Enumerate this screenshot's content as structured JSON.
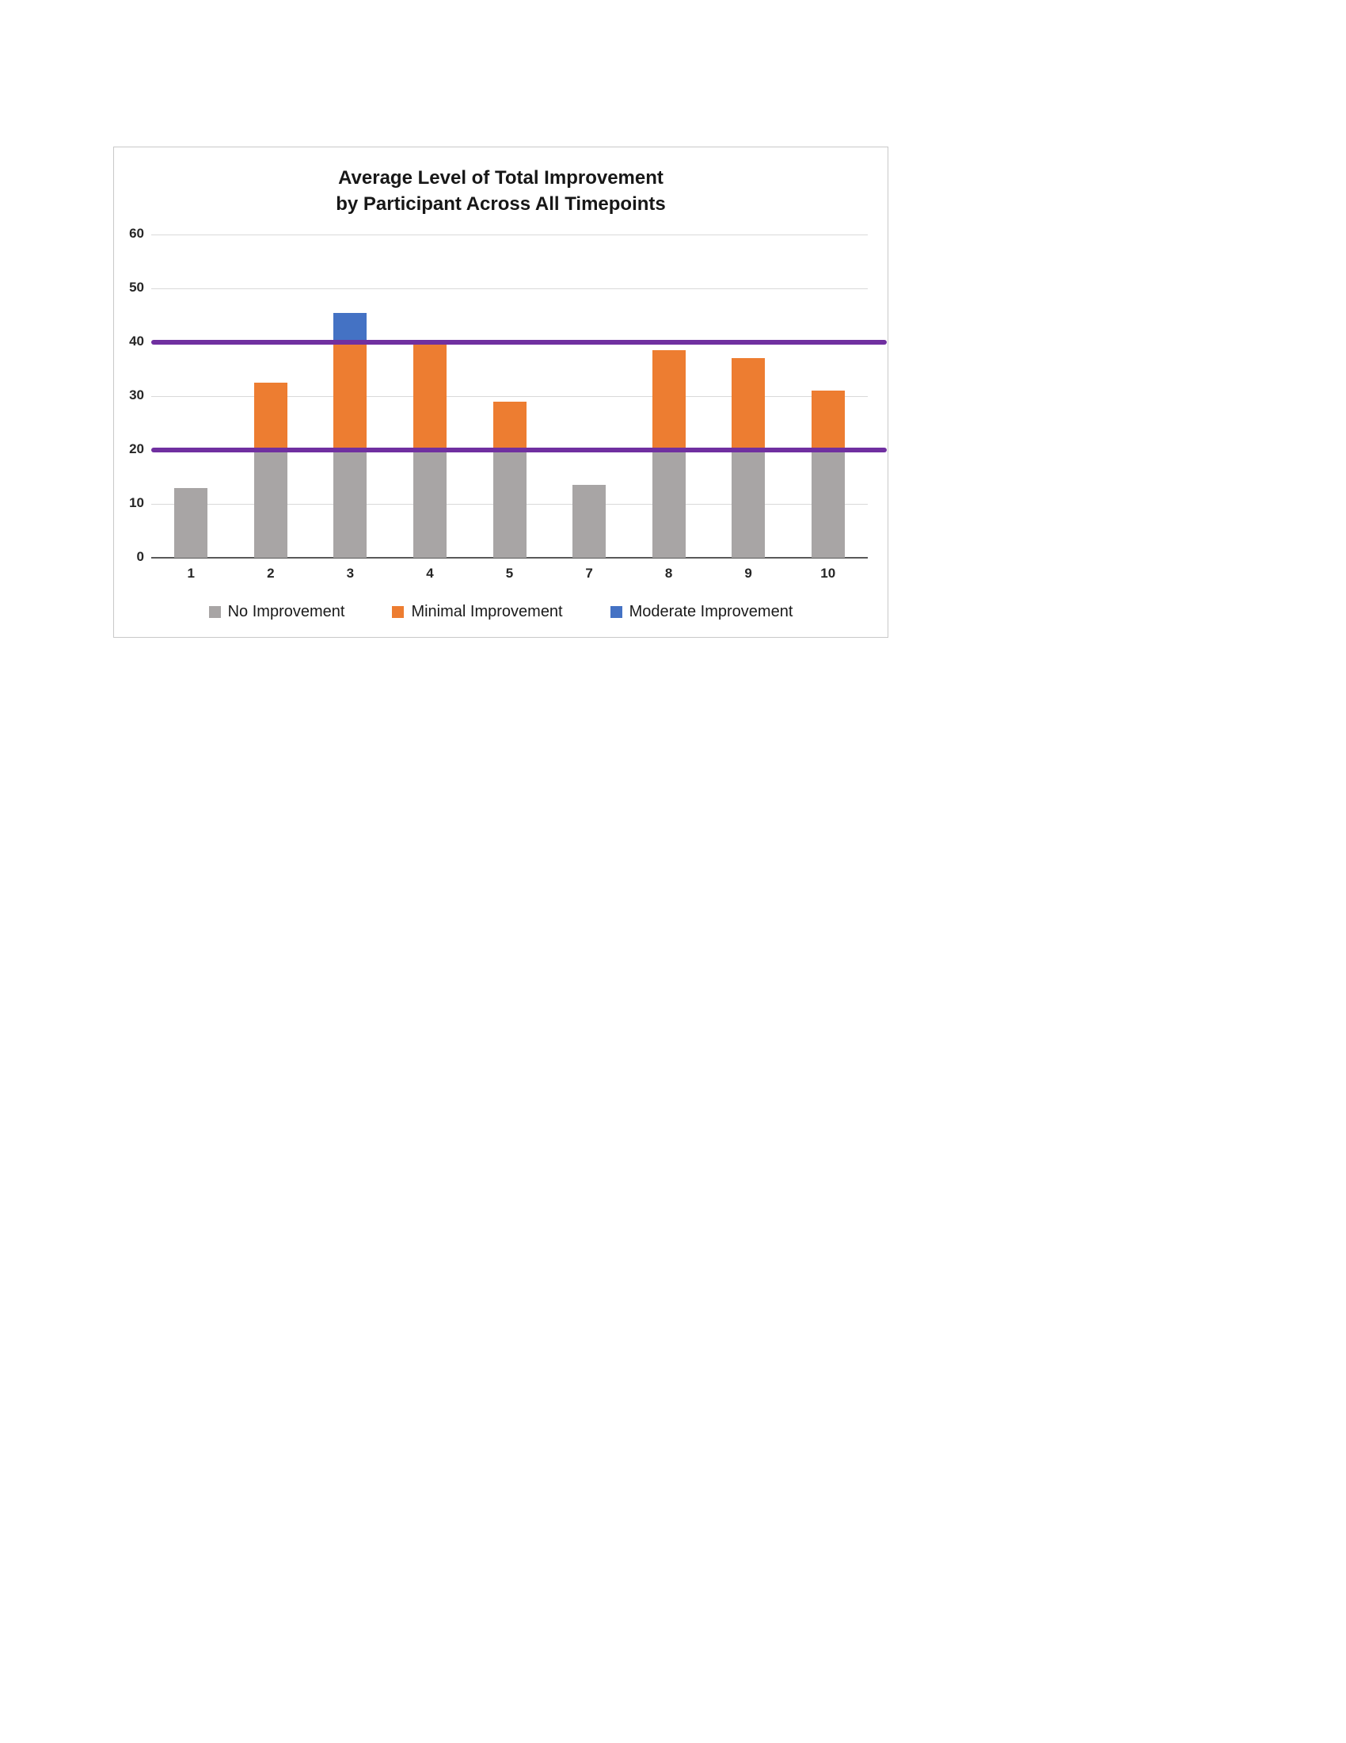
{
  "chart_data": {
    "type": "bar",
    "stacked": true,
    "title": "Average Level of Total Improvement by Participant Across All Timepoints",
    "title_lines": [
      "Average Level of Total Improvement",
      "by Participant Across All Timepoints"
    ],
    "xlabel": "",
    "ylabel": "",
    "categories": [
      "1",
      "2",
      "3",
      "4",
      "5",
      "7",
      "8",
      "9",
      "10"
    ],
    "series": [
      {
        "name": "No Improvement",
        "color": "#a8a5a5",
        "values": [
          13,
          20,
          20,
          20,
          20,
          13.5,
          20,
          20,
          20
        ]
      },
      {
        "name": "Minimal Improvement",
        "color": "#ed7d31",
        "values": [
          0,
          12.5,
          20.5,
          19.5,
          9,
          0,
          18.5,
          17,
          11
        ]
      },
      {
        "name": "Moderate Improvement",
        "color": "#4472c4",
        "values": [
          0,
          0,
          5,
          0,
          0,
          0,
          0,
          0,
          0
        ]
      }
    ],
    "totals": [
      13,
      32.5,
      45.5,
      39.5,
      29,
      13.5,
      38.5,
      37,
      31
    ],
    "y_ticks": [
      0,
      10,
      20,
      30,
      40,
      50,
      60
    ],
    "ylim": [
      0,
      60
    ],
    "reference_lines": [
      {
        "value": 20,
        "color": "#7030a0"
      },
      {
        "value": 40,
        "color": "#7030a0"
      }
    ],
    "grid": true,
    "legend_position": "bottom",
    "gridline_color": "#d9d9d9",
    "axis_line_color": "#595959"
  }
}
